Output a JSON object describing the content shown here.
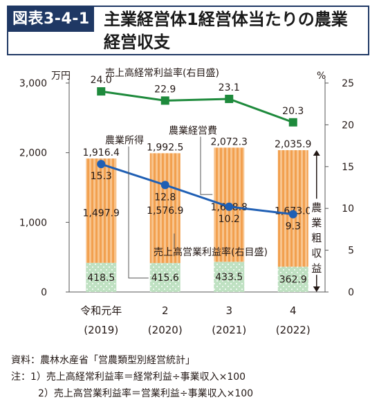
{
  "figure": {
    "tag": "図表3-4-1",
    "title_line1": "主業経営体1経営体当たりの農業",
    "title_line2": "経営収支"
  },
  "chart_data": {
    "type": "bar",
    "categories": [
      "令和元年",
      "2",
      "3",
      "4"
    ],
    "category_years": [
      "(2019)",
      "(2020)",
      "(2021)",
      "(2022)"
    ],
    "left_axis_unit": "万円",
    "right_axis_unit": "%",
    "left_ylim": [
      0,
      3000
    ],
    "left_ticks": [
      "0",
      "1,000",
      "2,000",
      "3,000"
    ],
    "right_ylim": [
      0,
      25
    ],
    "right_ticks": [
      "0",
      "5",
      "10",
      "15",
      "20",
      "25"
    ],
    "bar_series": [
      {
        "name": "農業経営費",
        "values": [
          418.5,
          415.6,
          433.5,
          362.9
        ],
        "labels": [
          "418.5",
          "415.6",
          "433.5",
          "362.9"
        ],
        "color": "#c4e3c5"
      },
      {
        "name": "農業所得",
        "values": [
          1497.9,
          1576.9,
          1638.8,
          1673.0
        ],
        "labels": [
          "1,497.9",
          "1,576.9",
          "1,638.8",
          "1,673.0"
        ],
        "color": "#f6b16b"
      }
    ],
    "bar_totals": [
      "1,916.4",
      "1,992.5",
      "2,072.3",
      "2,035.9"
    ],
    "line_series": [
      {
        "name": "売上高経常利益率(右目盛)",
        "values": [
          24.0,
          22.9,
          23.1,
          20.3
        ],
        "labels": [
          "24.0",
          "22.9",
          "23.1",
          "20.3"
        ],
        "color": "#1e8a3c"
      },
      {
        "name": "売上高営業利益率(右目盛)",
        "values": [
          15.3,
          12.8,
          10.2,
          9.3
        ],
        "labels": [
          "15.3",
          "12.8",
          "10.2",
          "9.3"
        ],
        "color": "#1f5fb4"
      }
    ],
    "annotations": {
      "income": "農業所得",
      "expense": "農業経営費",
      "gross": "農業粗収益"
    }
  },
  "notes": {
    "source": "資料：農林水産省「営農類型別経営統計」",
    "note1": "注：1）売上高経常利益率＝経常利益÷事業収入×100",
    "note2": "2）売上高営業利益率＝営業利益÷事業収入×100"
  }
}
